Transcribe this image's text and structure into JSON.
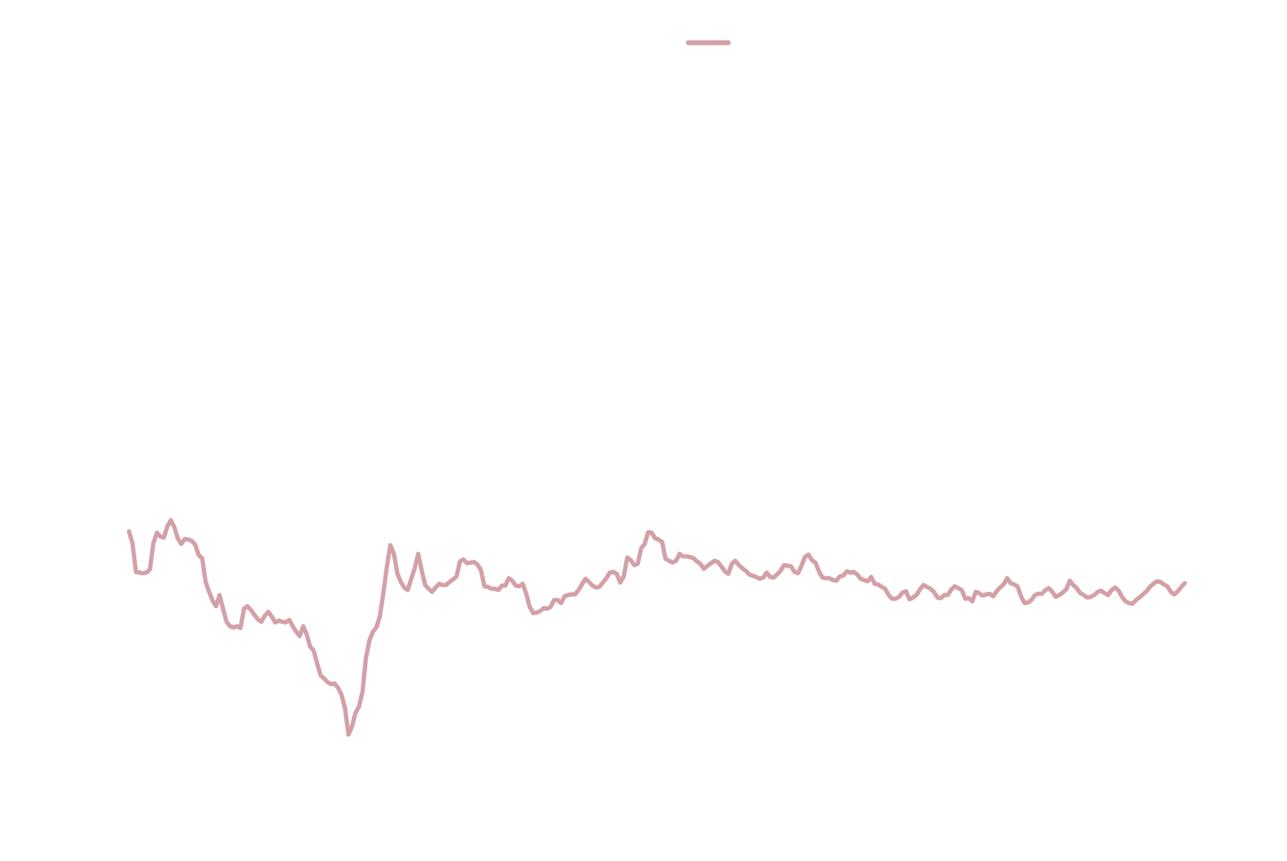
{
  "chart_data": {
    "type": "line",
    "title": "",
    "xlabel": "",
    "ylabel": "",
    "grid": false,
    "axes_visible": false,
    "legend": {
      "placement": "top-center",
      "entries": [
        {
          "label": "",
          "color": "#d4a0a8"
        }
      ]
    },
    "xlim": [
      0,
      299
    ],
    "ylim": [
      0,
      100
    ],
    "series": [
      {
        "color": "#d4a0a8",
        "x_step": 1,
        "values": [
          33.0,
          31.1,
          26.5,
          26.4,
          26.3,
          26.4,
          26.9,
          31.1,
          32.8,
          32.2,
          32.0,
          33.8,
          34.8,
          33.7,
          31.9,
          31.0,
          31.8,
          31.7,
          31.5,
          30.9,
          29.2,
          28.7,
          24.9,
          23.3,
          21.9,
          21.0,
          22.8,
          20.6,
          18.5,
          17.8,
          17.6,
          17.8,
          17.5,
          20.6,
          21.0,
          20.4,
          19.6,
          18.9,
          18.5,
          19.5,
          20.1,
          19.3,
          18.4,
          18.7,
          18.5,
          18.4,
          18.8,
          17.8,
          16.9,
          16.2,
          17.8,
          16.5,
          14.5,
          13.9,
          11.8,
          9.9,
          9.4,
          8.8,
          8.5,
          8.6,
          7.9,
          6.8,
          4.6,
          0.4,
          1.7,
          3.9,
          4.9,
          7.2,
          12.7,
          15.5,
          16.9,
          17.6,
          19.4,
          23.1,
          27.3,
          30.8,
          29.5,
          26.3,
          24.9,
          24.0,
          23.6,
          25.4,
          27.1,
          29.4,
          26.8,
          24.4,
          23.8,
          23.3,
          24.0,
          24.6,
          24.4,
          24.4,
          24.9,
          25.3,
          25.8,
          28.2,
          28.5,
          27.9,
          28.0,
          28.1,
          27.7,
          26.8,
          24.2,
          24.1,
          23.8,
          23.8,
          23.6,
          24.3,
          24.3,
          25.5,
          25.1,
          24.3,
          24.2,
          24.6,
          23.0,
          20.9,
          19.9,
          20.0,
          20.2,
          20.7,
          20.6,
          20.9,
          22.0,
          22.0,
          21.5,
          22.6,
          22.8,
          22.9,
          22.9,
          23.6,
          24.5,
          25.4,
          24.9,
          24.3,
          24.0,
          24.1,
          24.8,
          25.5,
          26.4,
          26.5,
          26.2,
          24.8,
          25.8,
          28.8,
          28.4,
          27.6,
          27.8,
          30.3,
          31.0,
          32.9,
          32.8,
          31.9,
          31.7,
          31.3,
          28.6,
          28.3,
          28.0,
          28.3,
          29.4,
          29.0,
          29.0,
          28.9,
          28.7,
          28.2,
          27.8,
          27.0,
          27.5,
          27.9,
          28.3,
          28.1,
          27.4,
          26.6,
          26.2,
          27.8,
          28.3,
          27.6,
          27.1,
          26.7,
          26.1,
          25.9,
          25.7,
          25.4,
          25.6,
          26.4,
          25.7,
          25.6,
          26.1,
          26.7,
          27.6,
          27.5,
          27.4,
          26.5,
          26.3,
          27.5,
          28.9,
          29.3,
          28.4,
          28.0,
          26.6,
          25.6,
          25.5,
          25.5,
          25.2,
          25.1,
          25.8,
          25.9,
          26.6,
          26.4,
          26.5,
          26.1,
          25.4,
          25.2,
          25.0,
          25.7,
          24.6,
          24.5,
          24.1,
          23.8,
          22.8,
          22.2,
          22.2,
          22.5,
          23.2,
          23.4,
          22.1,
          22.4,
          22.8,
          23.7,
          24.4,
          24.1,
          23.8,
          23.3,
          22.4,
          22.3,
          22.8,
          22.8,
          23.7,
          24.2,
          23.9,
          23.6,
          22.2,
          22.3,
          21.8,
          23.3,
          23.1,
          22.7,
          22.9,
          23.0,
          22.6,
          23.4,
          24.0,
          24.5,
          25.5,
          24.7,
          24.5,
          24.2,
          22.6,
          21.5,
          21.6,
          22.0,
          22.8,
          23.0,
          23.0,
          23.6,
          23.9,
          23.3,
          22.5,
          22.8,
          23.2,
          23.7,
          25.1,
          24.4,
          23.9,
          23.1,
          22.8,
          22.4,
          22.5,
          22.8,
          23.3,
          23.5,
          23.1,
          22.8,
          23.6,
          24.0,
          23.5,
          22.5,
          21.8,
          21.5,
          21.4,
          22.0,
          22.4,
          22.9,
          23.4,
          24.1,
          24.6,
          25.0,
          24.9,
          24.5,
          24.2,
          23.3,
          22.9,
          23.4,
          24.1,
          24.7
        ]
      }
    ]
  }
}
